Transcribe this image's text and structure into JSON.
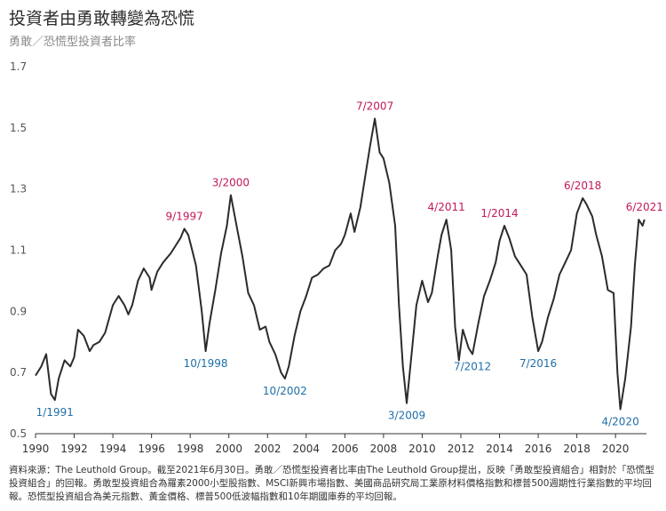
{
  "header": {
    "title": "投資者由勇敢轉變為恐慌",
    "subtitle": "勇敢／恐慌型投資者比率"
  },
  "footer": {
    "source": "資料來源：The Leuthold Group。截至2021年6月30日。勇敢／恐慌型投資者比率由The Leuthold Group提出，反映「勇敢型投資組合」相對於「恐慌型投資組合」的回報。勇敢型投資組合為羅素2000小型股指數、MSCI新興市場指數、美國商品研究局工業原材料價格指數和標普500週期性行業指數的平均回報。恐慌型投資組合為美元指數、黃金價格、標普500低波幅指數和10年期國庫券的平均回報。"
  },
  "colors": {
    "line": "#2b2b2b",
    "peak": "#c2185b",
    "trough": "#1f6fa8",
    "axis": "#333333",
    "tick": "#555555"
  },
  "chart_data": {
    "type": "line",
    "title": "投資者由勇敢轉變為恐慌",
    "subtitle": "勇敢／恐慌型投資者比率",
    "xlabel": "",
    "ylabel": "",
    "xlim": [
      1990,
      2021.6
    ],
    "ylim": [
      0.5,
      1.7
    ],
    "x_ticks": [
      "1990",
      "1992",
      "1994",
      "1996",
      "1998",
      "2000",
      "2002",
      "2004",
      "2006",
      "2008",
      "2010",
      "2012",
      "2014",
      "2016",
      "2018",
      "2020"
    ],
    "y_ticks": [
      "0.5",
      "0.7",
      "0.9",
      "1.1",
      "1.3",
      "1.5",
      "1.7"
    ],
    "grid": false,
    "series": [
      {
        "points": [
          [
            1990.0,
            0.69
          ],
          [
            1990.3,
            0.72
          ],
          [
            1990.55,
            0.76
          ],
          [
            1990.8,
            0.63
          ],
          [
            1991.0,
            0.61
          ],
          [
            1991.2,
            0.68
          ],
          [
            1991.5,
            0.74
          ],
          [
            1991.8,
            0.72
          ],
          [
            1992.0,
            0.75
          ],
          [
            1992.2,
            0.84
          ],
          [
            1992.5,
            0.82
          ],
          [
            1992.8,
            0.77
          ],
          [
            1993.0,
            0.79
          ],
          [
            1993.3,
            0.8
          ],
          [
            1993.6,
            0.83
          ],
          [
            1994.0,
            0.92
          ],
          [
            1994.3,
            0.95
          ],
          [
            1994.6,
            0.92
          ],
          [
            1994.8,
            0.89
          ],
          [
            1995.0,
            0.92
          ],
          [
            1995.3,
            1.0
          ],
          [
            1995.6,
            1.04
          ],
          [
            1995.9,
            1.01
          ],
          [
            1996.0,
            0.97
          ],
          [
            1996.3,
            1.03
          ],
          [
            1996.6,
            1.06
          ],
          [
            1997.0,
            1.09
          ],
          [
            1997.3,
            1.12
          ],
          [
            1997.5,
            1.14
          ],
          [
            1997.7,
            1.17
          ],
          [
            1997.9,
            1.15
          ],
          [
            1998.1,
            1.1
          ],
          [
            1998.3,
            1.05
          ],
          [
            1998.6,
            0.9
          ],
          [
            1998.8,
            0.77
          ],
          [
            1999.0,
            0.86
          ],
          [
            1999.3,
            0.97
          ],
          [
            1999.6,
            1.09
          ],
          [
            1999.9,
            1.18
          ],
          [
            2000.1,
            1.28
          ],
          [
            2000.4,
            1.18
          ],
          [
            2000.7,
            1.08
          ],
          [
            2001.0,
            0.96
          ],
          [
            2001.3,
            0.92
          ],
          [
            2001.6,
            0.84
          ],
          [
            2001.9,
            0.85
          ],
          [
            2002.1,
            0.8
          ],
          [
            2002.4,
            0.76
          ],
          [
            2002.7,
            0.7
          ],
          [
            2002.9,
            0.68
          ],
          [
            2003.1,
            0.72
          ],
          [
            2003.4,
            0.82
          ],
          [
            2003.7,
            0.9
          ],
          [
            2004.0,
            0.95
          ],
          [
            2004.3,
            1.01
          ],
          [
            2004.6,
            1.02
          ],
          [
            2004.9,
            1.04
          ],
          [
            2005.2,
            1.05
          ],
          [
            2005.5,
            1.1
          ],
          [
            2005.8,
            1.12
          ],
          [
            2006.0,
            1.15
          ],
          [
            2006.3,
            1.22
          ],
          [
            2006.5,
            1.16
          ],
          [
            2006.8,
            1.24
          ],
          [
            2007.1,
            1.36
          ],
          [
            2007.3,
            1.44
          ],
          [
            2007.55,
            1.53
          ],
          [
            2007.8,
            1.42
          ],
          [
            2008.0,
            1.4
          ],
          [
            2008.3,
            1.32
          ],
          [
            2008.6,
            1.18
          ],
          [
            2008.8,
            0.92
          ],
          [
            2009.0,
            0.72
          ],
          [
            2009.2,
            0.6
          ],
          [
            2009.45,
            0.76
          ],
          [
            2009.7,
            0.92
          ],
          [
            2010.0,
            1.0
          ],
          [
            2010.3,
            0.93
          ],
          [
            2010.5,
            0.96
          ],
          [
            2010.8,
            1.08
          ],
          [
            2011.0,
            1.15
          ],
          [
            2011.25,
            1.2
          ],
          [
            2011.5,
            1.1
          ],
          [
            2011.7,
            0.85
          ],
          [
            2011.9,
            0.74
          ],
          [
            2012.1,
            0.84
          ],
          [
            2012.4,
            0.78
          ],
          [
            2012.6,
            0.76
          ],
          [
            2012.9,
            0.86
          ],
          [
            2013.2,
            0.95
          ],
          [
            2013.5,
            1.0
          ],
          [
            2013.8,
            1.06
          ],
          [
            2014.0,
            1.13
          ],
          [
            2014.25,
            1.18
          ],
          [
            2014.5,
            1.14
          ],
          [
            2014.8,
            1.08
          ],
          [
            2015.1,
            1.05
          ],
          [
            2015.4,
            1.02
          ],
          [
            2015.7,
            0.88
          ],
          [
            2016.0,
            0.77
          ],
          [
            2016.2,
            0.8
          ],
          [
            2016.5,
            0.88
          ],
          [
            2016.8,
            0.94
          ],
          [
            2017.1,
            1.02
          ],
          [
            2017.4,
            1.06
          ],
          [
            2017.7,
            1.1
          ],
          [
            2018.0,
            1.22
          ],
          [
            2018.3,
            1.27
          ],
          [
            2018.5,
            1.25
          ],
          [
            2018.8,
            1.21
          ],
          [
            2019.0,
            1.15
          ],
          [
            2019.3,
            1.08
          ],
          [
            2019.6,
            0.97
          ],
          [
            2019.9,
            0.96
          ],
          [
            2020.1,
            0.7
          ],
          [
            2020.25,
            0.58
          ],
          [
            2020.5,
            0.68
          ],
          [
            2020.8,
            0.85
          ],
          [
            2021.0,
            1.05
          ],
          [
            2021.2,
            1.2
          ],
          [
            2021.4,
            1.18
          ],
          [
            2021.5,
            1.2
          ]
        ]
      }
    ],
    "annotations": [
      {
        "label": "1/1991",
        "x": 1991.0,
        "y": 0.61,
        "kind": "trough"
      },
      {
        "label": "9/1997",
        "x": 1997.7,
        "y": 1.17,
        "kind": "peak"
      },
      {
        "label": "10/1998",
        "x": 1998.8,
        "y": 0.77,
        "kind": "trough"
      },
      {
        "label": "3/2000",
        "x": 2000.1,
        "y": 1.28,
        "kind": "peak"
      },
      {
        "label": "10/2002",
        "x": 2002.9,
        "y": 0.68,
        "kind": "trough"
      },
      {
        "label": "7/2007",
        "x": 2007.55,
        "y": 1.53,
        "kind": "peak"
      },
      {
        "label": "3/2009",
        "x": 2009.2,
        "y": 0.6,
        "kind": "trough"
      },
      {
        "label": "4/2011",
        "x": 2011.25,
        "y": 1.2,
        "kind": "peak"
      },
      {
        "label": "7/2012",
        "x": 2012.6,
        "y": 0.76,
        "kind": "trough"
      },
      {
        "label": "1/2014",
        "x": 2014.0,
        "y": 1.18,
        "kind": "peak"
      },
      {
        "label": "7/2016",
        "x": 2016.0,
        "y": 0.77,
        "kind": "trough"
      },
      {
        "label": "6/2018",
        "x": 2018.3,
        "y": 1.27,
        "kind": "peak"
      },
      {
        "label": "4/2020",
        "x": 2020.25,
        "y": 0.58,
        "kind": "trough"
      },
      {
        "label": "6/2021",
        "x": 2021.5,
        "y": 1.2,
        "kind": "peak"
      }
    ]
  }
}
